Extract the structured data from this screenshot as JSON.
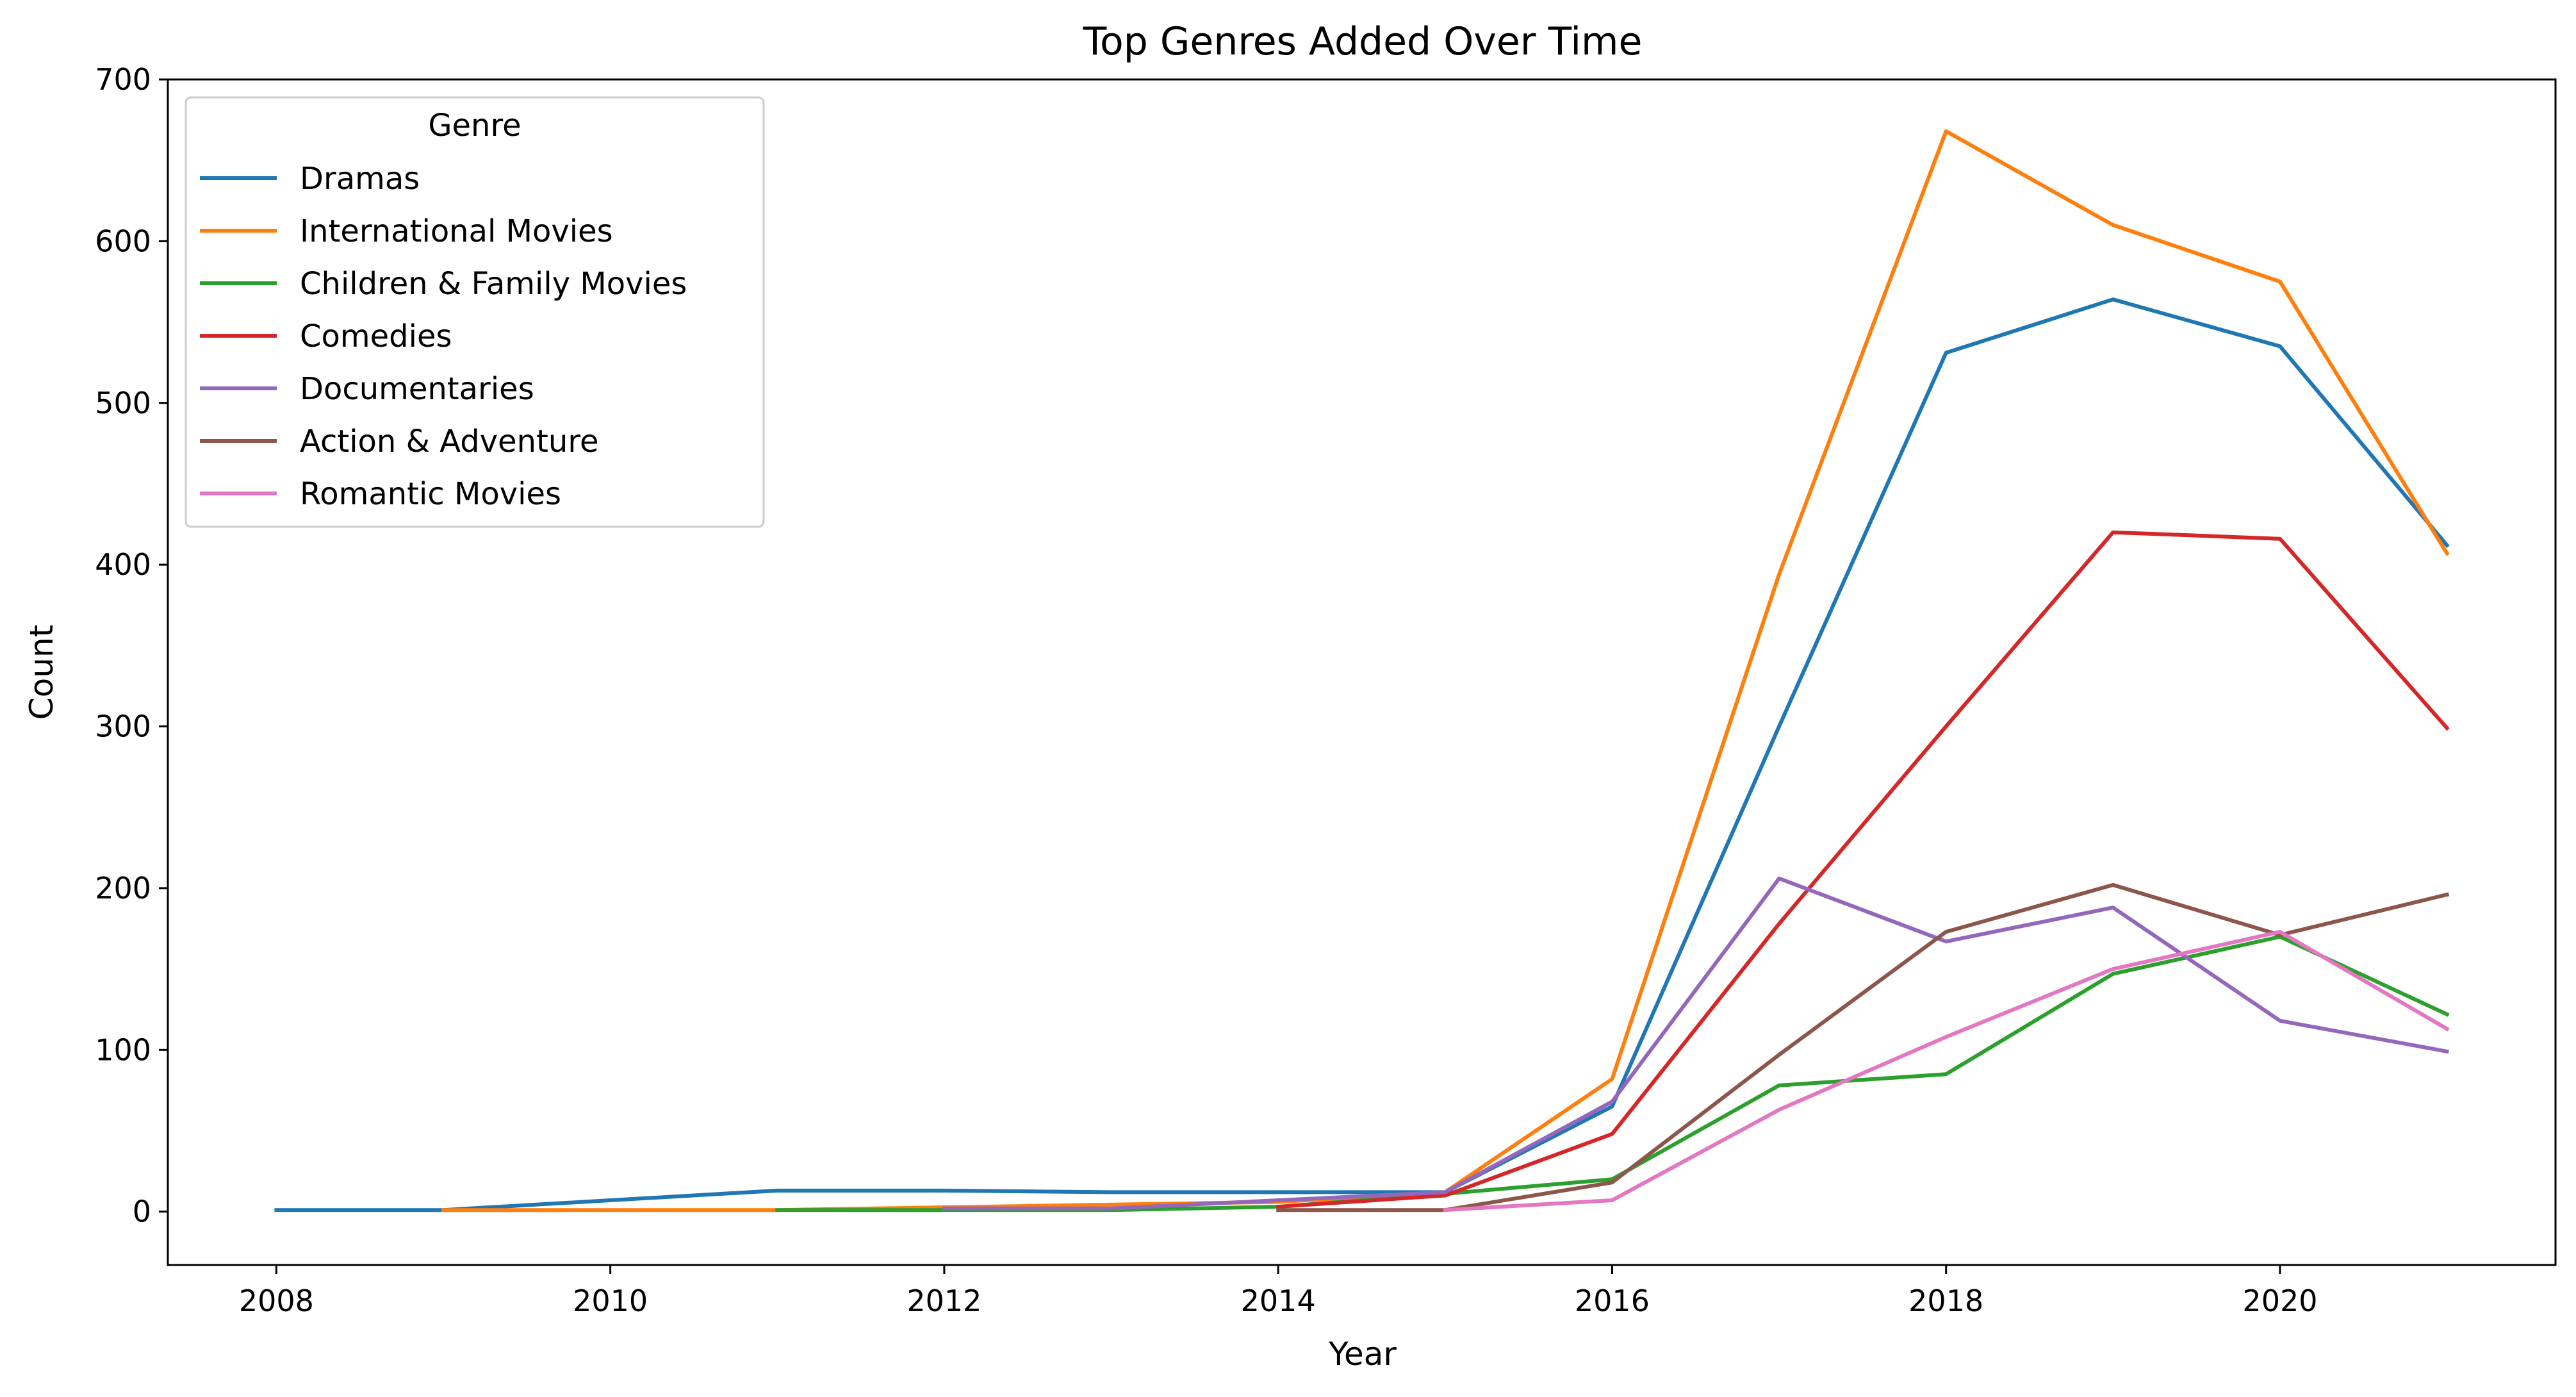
{
  "chart_data": {
    "type": "line",
    "title": "Top Genres Added Over Time",
    "xlabel": "Year",
    "ylabel": "Count",
    "xlim": [
      2007.35,
      2021.65
    ],
    "ylim": [
      -33,
      700
    ],
    "xticks": [
      2008,
      2010,
      2012,
      2014,
      2016,
      2018,
      2020
    ],
    "yticks": [
      0,
      100,
      200,
      300,
      400,
      500,
      600,
      700
    ],
    "grid": false,
    "legend": {
      "title": "Genre",
      "placement": "top-left"
    },
    "series": [
      {
        "name": "Dramas",
        "color": "#1f77b4",
        "points": [
          [
            2008,
            1
          ],
          [
            2009,
            1
          ],
          [
            2010,
            7
          ],
          [
            2011,
            13
          ],
          [
            2012,
            13
          ],
          [
            2013,
            12
          ],
          [
            2014,
            12
          ],
          [
            2015,
            12
          ],
          [
            2016,
            65
          ],
          [
            2017,
            300
          ],
          [
            2018,
            531
          ],
          [
            2019,
            564
          ],
          [
            2020,
            535
          ],
          [
            2021,
            412
          ]
        ]
      },
      {
        "name": "International Movies",
        "color": "#ff7f0e",
        "points": [
          [
            2009,
            1
          ],
          [
            2010,
            1
          ],
          [
            2011,
            1
          ],
          [
            2014,
            6
          ],
          [
            2015,
            12
          ],
          [
            2016,
            82
          ],
          [
            2017,
            394
          ],
          [
            2018,
            668
          ],
          [
            2019,
            610
          ],
          [
            2020,
            575
          ],
          [
            2021,
            407
          ]
        ]
      },
      {
        "name": "Children & Family Movies",
        "color": "#2ca02c",
        "points": [
          [
            2011,
            1
          ],
          [
            2012,
            1
          ],
          [
            2013,
            1
          ],
          [
            2014,
            3
          ],
          [
            2015,
            11
          ],
          [
            2016,
            20
          ],
          [
            2017,
            78
          ],
          [
            2018,
            85
          ],
          [
            2019,
            147
          ],
          [
            2020,
            170
          ],
          [
            2021,
            122
          ]
        ]
      },
      {
        "name": "Comedies",
        "color": "#d62728",
        "points": [
          [
            2014,
            3
          ],
          [
            2015,
            10
          ],
          [
            2016,
            48
          ],
          [
            2017,
            178
          ],
          [
            2018,
            300
          ],
          [
            2019,
            420
          ],
          [
            2020,
            416
          ],
          [
            2021,
            299
          ]
        ]
      },
      {
        "name": "Documentaries",
        "color": "#9467bd",
        "points": [
          [
            2012,
            2
          ],
          [
            2013,
            2
          ],
          [
            2014,
            7
          ],
          [
            2015,
            12
          ],
          [
            2016,
            68
          ],
          [
            2017,
            206
          ],
          [
            2018,
            167
          ],
          [
            2019,
            188
          ],
          [
            2020,
            118
          ],
          [
            2021,
            99
          ]
        ]
      },
      {
        "name": "Action & Adventure",
        "color": "#8c564b",
        "points": [
          [
            2014,
            1
          ],
          [
            2015,
            1
          ],
          [
            2016,
            18
          ],
          [
            2017,
            97
          ],
          [
            2018,
            173
          ],
          [
            2019,
            202
          ],
          [
            2020,
            171
          ],
          [
            2021,
            196
          ]
        ]
      },
      {
        "name": "Romantic Movies",
        "color": "#e377c2",
        "points": [
          [
            2015,
            1
          ],
          [
            2016,
            7
          ],
          [
            2017,
            63
          ],
          [
            2018,
            108
          ],
          [
            2019,
            150
          ],
          [
            2020,
            173
          ],
          [
            2021,
            113
          ]
        ]
      }
    ]
  }
}
